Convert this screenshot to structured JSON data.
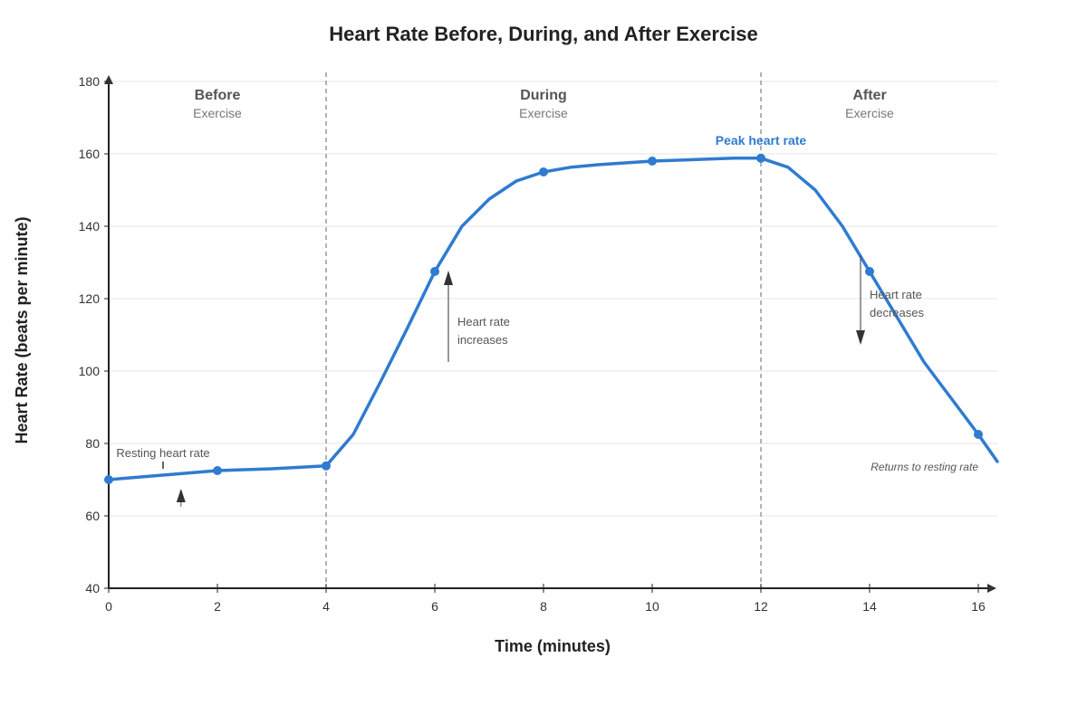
{
  "chart_data": {
    "type": "line",
    "title": "Heart Rate Before, During, and After Exercise",
    "xlabel": "Time (minutes)",
    "ylabel": "Heart Rate (beats per minute)",
    "xlim": [
      0,
      16.35
    ],
    "ylim": [
      40,
      180
    ],
    "x_ticks": [
      0,
      2,
      4,
      6,
      8,
      10,
      12,
      14,
      16
    ],
    "y_ticks": [
      40,
      60,
      80,
      100,
      120,
      140,
      160,
      180
    ],
    "grid": "horizontal",
    "series": [
      {
        "color": "#2f7bd0",
        "x": [
          0,
          2,
          3,
          4,
          4.5,
          5,
          5.5,
          6,
          6.5,
          7,
          7.5,
          8,
          8.5,
          9,
          10,
          11.5,
          12,
          12.5,
          13,
          13.5,
          14,
          14.5,
          15,
          15.5,
          16,
          16.35
        ],
        "y": [
          70,
          72.5,
          73,
          73.8,
          82.5,
          97,
          112,
          127.5,
          140,
          147.5,
          152.5,
          155,
          156.3,
          157,
          158,
          158.8,
          158.8,
          156.3,
          150,
          140,
          127.5,
          115,
          102.5,
          92.5,
          82.5,
          75
        ]
      }
    ],
    "markers": {
      "x": [
        0,
        2,
        4,
        6,
        8,
        10,
        12,
        14,
        16
      ],
      "y": [
        70,
        72.5,
        73.8,
        127.5,
        155,
        158,
        158.8,
        127.5,
        82.5
      ]
    },
    "phase_boundaries": [
      4,
      12
    ],
    "phases": [
      {
        "name": "Before",
        "sub": "Exercise",
        "x": 2
      },
      {
        "name": "During",
        "sub": "Exercise",
        "x": 8
      },
      {
        "name": "After",
        "sub": "Exercise",
        "x": 14
      }
    ],
    "annotations": {
      "peak": {
        "text": "Peak heart rate",
        "x": 12,
        "y": 159,
        "color": "#2f7bd0"
      },
      "resting": {
        "text": "Resting heart rate",
        "x": 1,
        "y": 77
      },
      "increase": {
        "lines": [
          "Heart rate",
          "increases"
        ],
        "x": 6.25
      },
      "decrease": {
        "lines": [
          "Heart rate",
          "decreases"
        ],
        "x": 14
      },
      "returns": {
        "text": "Returns to resting rate",
        "x": 16,
        "y": 73
      }
    }
  }
}
